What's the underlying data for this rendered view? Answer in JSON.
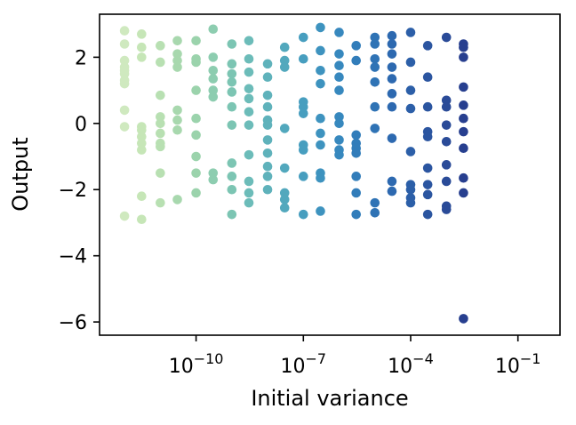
{
  "chart_data": {
    "type": "scatter",
    "title": "",
    "xlabel": "Initial variance",
    "ylabel": "Output",
    "x_scale": "log",
    "xlim": [
      2e-13,
      1.5
    ],
    "ylim": [
      -6.4,
      3.3
    ],
    "grid": false,
    "legend": "none",
    "x_ticks": [
      {
        "value": 1e-10,
        "base": "10",
        "exp": "−10"
      },
      {
        "value": 1e-07,
        "base": "10",
        "exp": "−7"
      },
      {
        "value": 0.0001,
        "base": "10",
        "exp": "−4"
      },
      {
        "value": 0.1,
        "base": "10",
        "exp": "−1"
      }
    ],
    "y_ticks": [
      {
        "value": 2,
        "label": "2"
      },
      {
        "value": 0,
        "label": "0"
      },
      {
        "value": -2,
        "label": "−2"
      },
      {
        "value": -4,
        "label": "−4"
      },
      {
        "value": -6,
        "label": "−6"
      }
    ],
    "series": [
      {
        "x": 1e-12,
        "color": "#cfe9bf",
        "y": [
          2.8,
          2.4,
          1.9,
          1.7,
          1.6,
          1.5,
          1.3,
          1.2,
          0.4,
          -0.1,
          -2.8
        ]
      },
      {
        "x": 3e-12,
        "color": "#c6e6b7",
        "y": [
          2.7,
          2.3,
          2.0,
          -0.1,
          -0.2,
          -0.4,
          -0.6,
          -0.8,
          -2.2,
          -2.9
        ]
      },
      {
        "x": 1e-11,
        "color": "#b8e0b2",
        "y": [
          2.35,
          1.85,
          0.85,
          0.2,
          0.0,
          -0.3,
          -0.6,
          -0.7,
          -1.5,
          -2.4
        ]
      },
      {
        "x": 3e-11,
        "color": "#a8d8ae",
        "y": [
          2.5,
          2.1,
          1.9,
          1.7,
          0.4,
          0.1,
          -0.2,
          -2.3
        ]
      },
      {
        "x": 1e-10,
        "color": "#9bd3ac",
        "y": [
          2.5,
          1.95,
          1.85,
          1.0,
          0.15,
          -0.35,
          -1.0,
          -1.5,
          -2.1
        ]
      },
      {
        "x": 3e-10,
        "color": "#8dcdb0",
        "y": [
          2.85,
          2.0,
          1.6,
          1.35,
          1.0,
          0.8,
          -1.5,
          -1.7
        ]
      },
      {
        "x": 1e-09,
        "color": "#7cc5b3",
        "y": [
          2.4,
          1.8,
          1.5,
          1.25,
          0.95,
          0.5,
          -0.05,
          -1.2,
          -1.6,
          -2.0,
          -2.75
        ]
      },
      {
        "x": 3e-09,
        "color": "#6cbcb9",
        "y": [
          2.5,
          1.95,
          1.55,
          1.05,
          0.75,
          0.35,
          -0.05,
          -0.95,
          -1.75,
          -2.1,
          -2.4
        ]
      },
      {
        "x": 1e-08,
        "color": "#5fb2bb",
        "y": [
          1.8,
          1.4,
          0.85,
          0.5,
          0.1,
          -0.05,
          -0.5,
          -0.9,
          -1.3,
          -1.6,
          -2.0
        ]
      },
      {
        "x": 3e-08,
        "color": "#52a8bd",
        "y": [
          2.3,
          1.9,
          1.7,
          -0.15,
          -1.35,
          -2.1,
          -2.3,
          -2.55
        ]
      },
      {
        "x": 1e-07,
        "color": "#479ebf",
        "y": [
          2.6,
          1.95,
          0.65,
          0.5,
          0.3,
          -0.65,
          -0.8,
          -1.6,
          -2.75
        ]
      },
      {
        "x": 3e-07,
        "color": "#3e93bf",
        "y": [
          2.9,
          2.2,
          1.6,
          1.2,
          0.15,
          -0.3,
          -0.65,
          -1.5,
          -1.65,
          -2.65
        ]
      },
      {
        "x": 1e-06,
        "color": "#3788be",
        "y": [
          2.75,
          2.1,
          1.75,
          1.4,
          1.0,
          0.2,
          0.0,
          -0.5,
          -0.8,
          -0.95
        ]
      },
      {
        "x": 3e-06,
        "color": "#327dba",
        "y": [
          2.35,
          1.9,
          -0.35,
          -0.6,
          -0.75,
          -0.9,
          -1.6,
          -2.1,
          -2.75
        ]
      },
      {
        "x": 1e-05,
        "color": "#2f73b5",
        "y": [
          2.6,
          2.4,
          1.95,
          1.7,
          1.25,
          0.5,
          -0.15,
          -2.4,
          -2.7
        ]
      },
      {
        "x": 3e-05,
        "color": "#2d69b0",
        "y": [
          2.65,
          2.4,
          2.1,
          1.7,
          1.35,
          0.9,
          0.5,
          -0.45,
          -1.75,
          -2.05
        ]
      },
      {
        "x": 0.0001,
        "color": "#2c5fa8",
        "y": [
          2.75,
          1.85,
          1.0,
          0.45,
          -0.85,
          -1.85,
          -2.0,
          -2.25,
          -2.4
        ]
      },
      {
        "x": 0.0003,
        "color": "#2b55a0",
        "y": [
          2.35,
          1.4,
          0.5,
          -0.25,
          -0.4,
          -1.35,
          -1.85,
          -2.15,
          -2.75
        ]
      },
      {
        "x": 0.001,
        "color": "#2a4b98",
        "y": [
          2.6,
          0.7,
          0.5,
          -0.05,
          -0.55,
          -1.25,
          -1.75,
          -2.5,
          -2.6
        ]
      },
      {
        "x": 0.003,
        "color": "#273f8f",
        "y": [
          2.4,
          2.3,
          2.0,
          1.1,
          0.55,
          0.15,
          -0.25,
          -0.75,
          -1.65,
          -2.1,
          -5.9
        ]
      }
    ]
  }
}
